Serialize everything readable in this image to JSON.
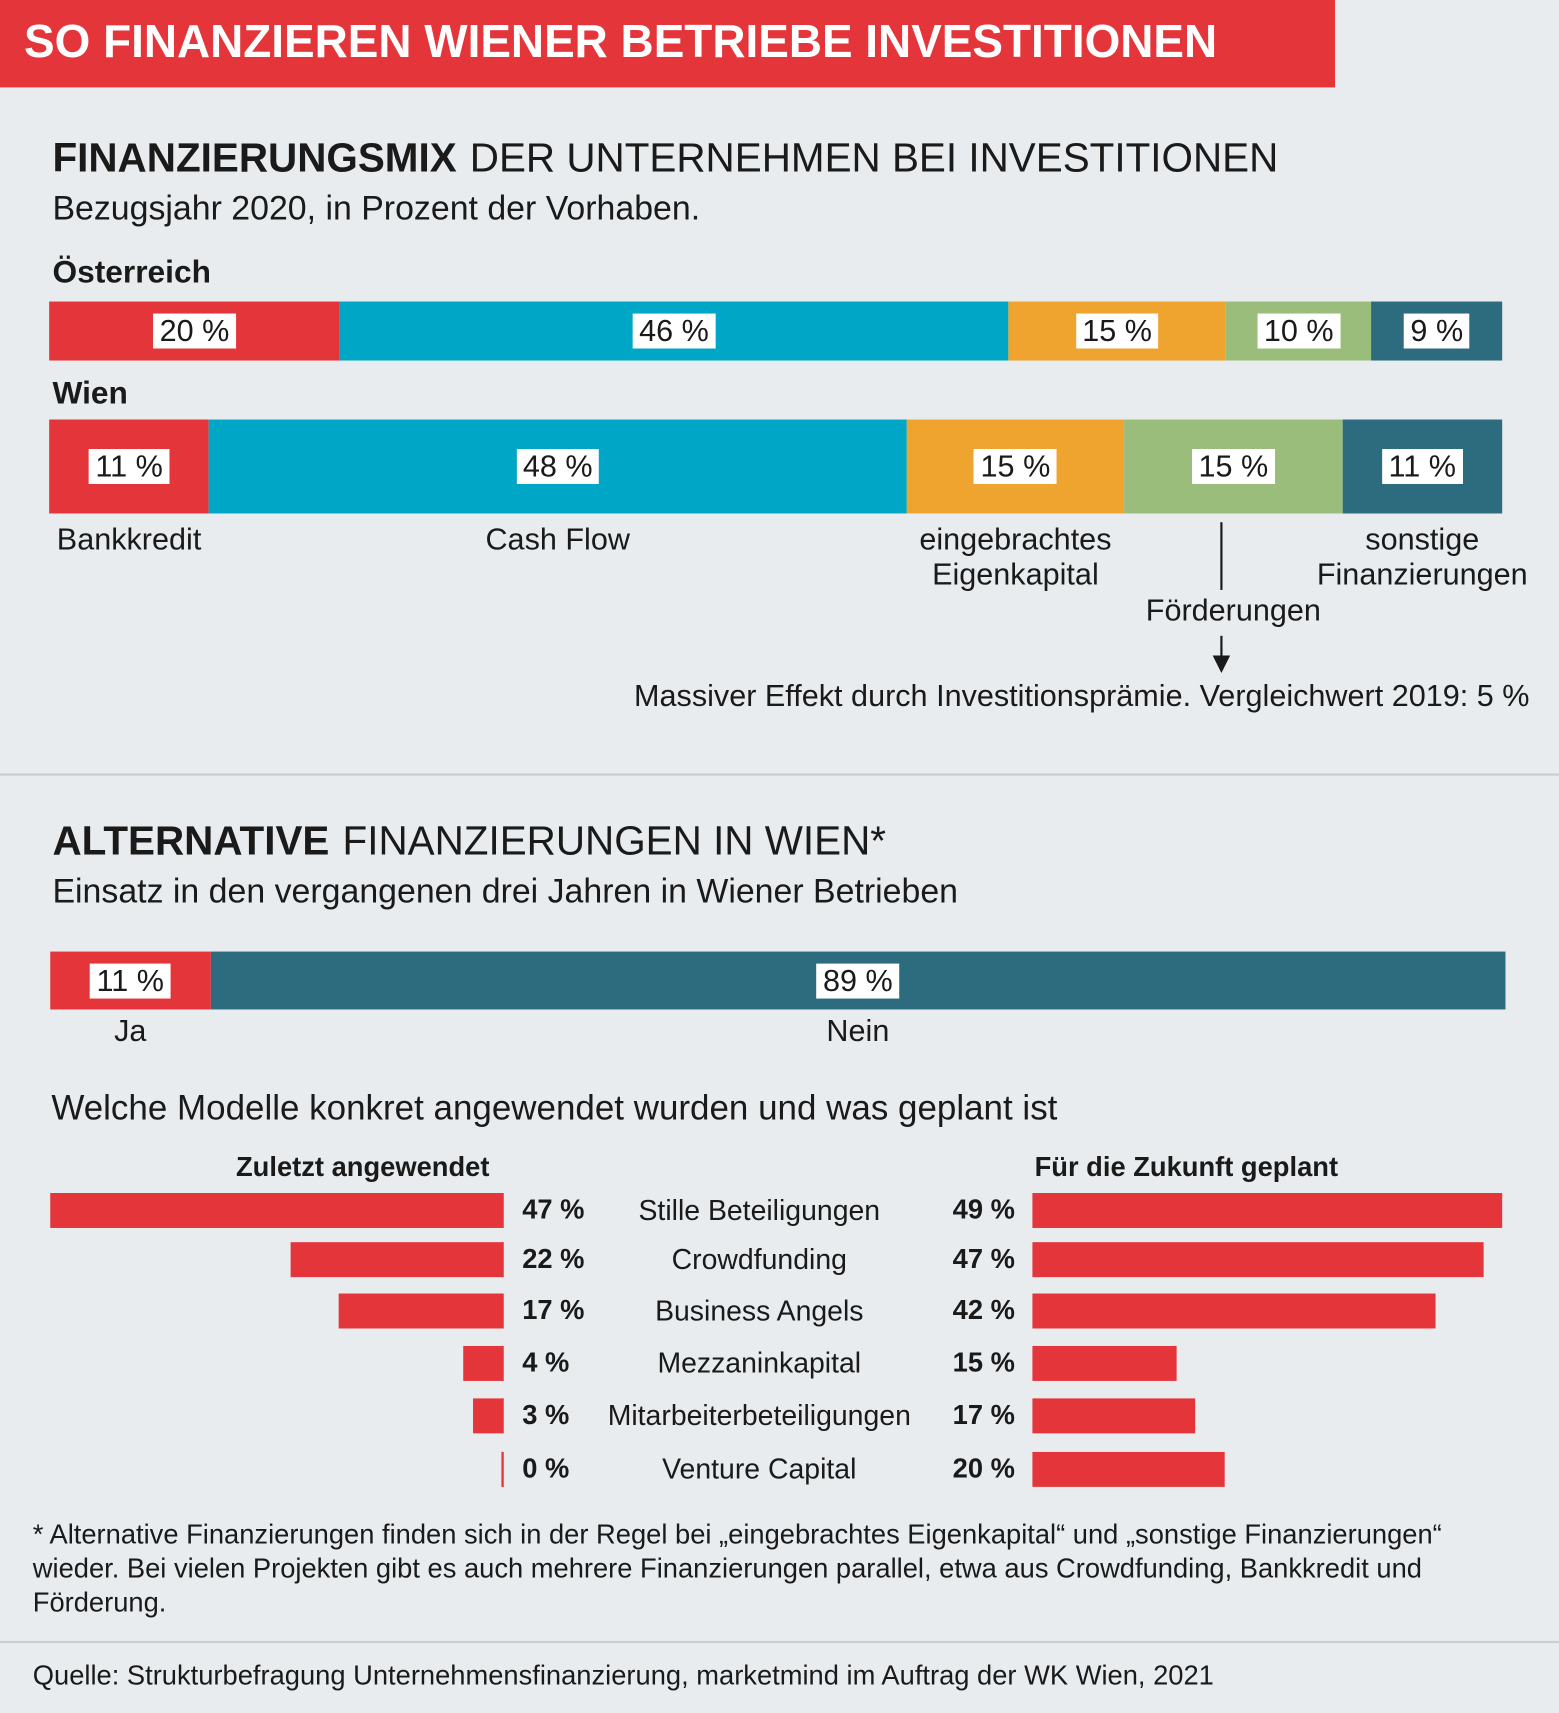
{
  "title": "SO FINANZIEREN WIENER BETRIEBE INVESTITIONEN",
  "chart_data": [
    {
      "type": "stacked_bar",
      "title_bold": "FINANZIERUNGSMIX",
      "title": "DER UNTERNEHMEN BEI INVESTITIONEN",
      "subtitle": "Bezugsjahr 2020, in Prozent der Vorhaben.",
      "categories": [
        "Österreich",
        "Wien"
      ],
      "series": [
        {
          "name": "Bankkredit",
          "color": "#e4363a",
          "values": [
            20,
            11
          ],
          "value_labels": [
            "20 %",
            "11 %"
          ]
        },
        {
          "name": "Cash Flow",
          "color": "#00a6c5",
          "values": [
            46,
            48
          ],
          "value_labels": [
            "46 %",
            "48 %"
          ]
        },
        {
          "name": "eingebrachtes Eigenkapital",
          "color": "#efa42f",
          "values": [
            15,
            15
          ],
          "value_labels": [
            "15 %",
            "15 %"
          ]
        },
        {
          "name": "Förderungen",
          "color": "#9bbd7b",
          "values": [
            10,
            15
          ],
          "value_labels": [
            "10 %",
            "15 %"
          ]
        },
        {
          "name": "sonstige Finanzierungen",
          "color": "#2d6b7f",
          "values": [
            9,
            11
          ],
          "value_labels": [
            "9 %",
            "11 %"
          ]
        }
      ],
      "annotation": "Massiver Effekt durch Investitionsprämie. Vergleichwert 2019: 5 %"
    },
    {
      "type": "stacked_bar",
      "title_bold": "ALTERNATIVE",
      "title": "FINANZIERUNGEN IN WIEN*",
      "subtitle": "Einsatz in den vergangenen drei Jahren in Wiener Betrieben",
      "series": [
        {
          "name": "Ja",
          "color": "#e4363a",
          "values": [
            11
          ],
          "value_labels": [
            "11 %"
          ]
        },
        {
          "name": "Nein",
          "color": "#2d6b7f",
          "values": [
            89
          ],
          "value_labels": [
            "89 %"
          ]
        }
      ]
    },
    {
      "type": "butterfly",
      "title": "Welche Modelle konkret angewendet wurden und was geplant ist",
      "categories": [
        "Stille Beteiligungen",
        "Crowdfunding",
        "Business Angels",
        "Mezzaninkapital",
        "Mitarbeiterbeteiligungen",
        "Venture Capital"
      ],
      "series": [
        {
          "name": "Zuletzt angewendet",
          "color": "#e4363a",
          "values": [
            47,
            22,
            17,
            4,
            3,
            0
          ],
          "value_labels": [
            "47 %",
            "22 %",
            "17 %",
            "4 %",
            "3 %",
            "0 %"
          ]
        },
        {
          "name": "Für die Zukunft geplant",
          "color": "#e4363a",
          "values": [
            49,
            47,
            42,
            15,
            17,
            20
          ],
          "value_labels": [
            "49 %",
            "47 %",
            "42 %",
            "15 %",
            "17 %",
            "20 %"
          ]
        }
      ]
    }
  ],
  "footnote": "* Alternative Finanzierungen finden sich in der Regel bei „eingebrachtes Eigenkapital“ und „sonstige Finanzierungen“ wieder. Bei vielen Projekten gibt es auch mehrere Finanzierungen parallel, etwa aus Crowdfunding, Bankkredit und Förderung.",
  "source": "Quelle: Strukturbefragung Unternehmensfinanzierung, marketmind im Auftrag der WK Wien, 2021"
}
